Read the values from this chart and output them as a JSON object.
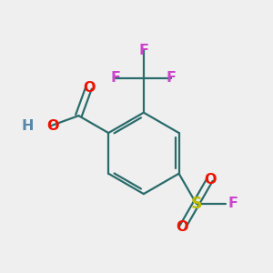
{
  "bg_color": "#efefef",
  "ring_color": "#2a6b6b",
  "bond_color": "#2a6b6b",
  "O_color": "#ee1100",
  "H_color": "#5588aa",
  "S_color": "#bbbb00",
  "F_color": "#cc44cc",
  "fig_width": 3.0,
  "fig_height": 3.0,
  "dpi": 100,
  "xlim": [
    -2.8,
    2.8
  ],
  "ylim": [
    -2.8,
    2.8
  ]
}
